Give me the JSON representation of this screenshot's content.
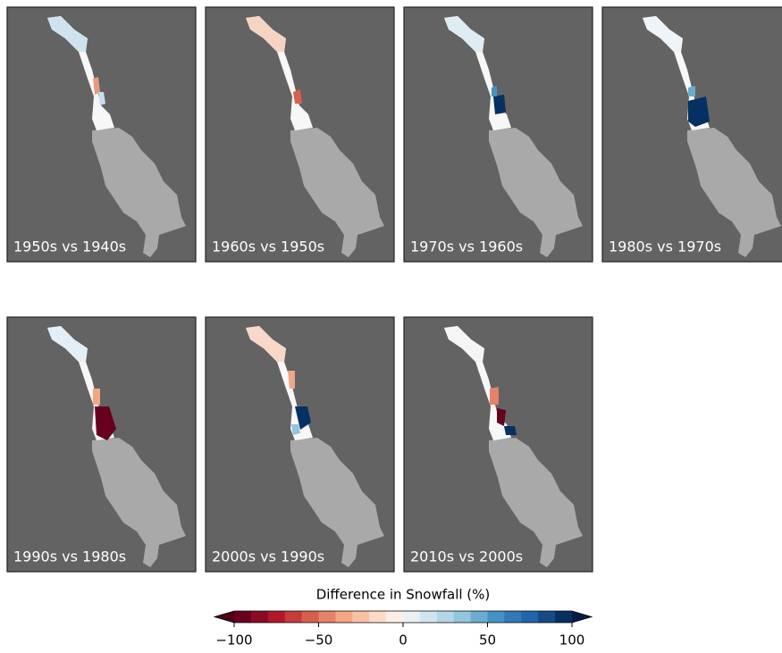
{
  "chart_data": {
    "type": "map",
    "panels": [
      "1950s vs 1940s",
      "1960s vs 1950s",
      "1970s vs 1960s",
      "1980s vs 1970s",
      "1990s vs 1980s",
      "2000s vs 1990s",
      "2010s vs 2000s"
    ],
    "colorbar": {
      "label": "Difference in Snowfall (%)",
      "xlim": [
        -100,
        100
      ],
      "xticks": [
        {
          "value": -100,
          "label": "−100"
        },
        {
          "value": -50,
          "label": "−50"
        },
        0,
        50,
        100
      ],
      "colors": [
        "#67001f",
        "#8a0b25",
        "#b2182b",
        "#c43c3c",
        "#d6604d",
        "#e58268",
        "#f4a582",
        "#f8c1a5",
        "#fddbc7",
        "#fbeee6",
        "#eaf1f5",
        "#d1e5f0",
        "#b3d6e8",
        "#92c5de",
        "#6bacd1",
        "#4393c3",
        "#3279b6",
        "#2166ac",
        "#144b87",
        "#053061"
      ],
      "under_color": "#4d0014",
      "over_color": "#031e45"
    }
  }
}
